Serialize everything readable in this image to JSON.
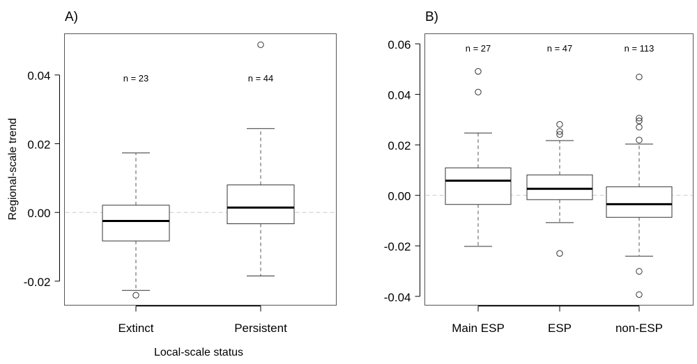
{
  "chart_data": [
    {
      "type": "box",
      "panel_label": "A)",
      "xlabel": "Local-scale status",
      "ylabel": "Regional-scale trend",
      "ylim": [
        -0.027,
        0.052
      ],
      "yticks": [
        -0.02,
        0.0,
        0.02,
        0.04
      ],
      "ytick_labels": [
        "-0.02",
        "0.00",
        "0.02",
        "0.04"
      ],
      "reference_line": 0.0,
      "categories": [
        "Extinct",
        "Persistent"
      ],
      "boxes": [
        {
          "category": "Extinct",
          "n_label": "n = 23",
          "whisker_low": -0.0227,
          "q1": -0.0083,
          "median": -0.0025,
          "q3": 0.0021,
          "whisker_high": 0.0173,
          "outliers": [
            -0.0241
          ]
        },
        {
          "category": "Persistent",
          "n_label": "n = 44",
          "whisker_low": -0.0185,
          "q1": -0.0033,
          "median": 0.0014,
          "q3": 0.008,
          "whisker_high": 0.0244,
          "outliers": [
            0.0488
          ]
        }
      ]
    },
    {
      "type": "box",
      "panel_label": "B)",
      "xlabel": "",
      "ylabel": "",
      "ylim": [
        -0.0435,
        0.064
      ],
      "yticks": [
        -0.04,
        -0.02,
        0.0,
        0.02,
        0.04,
        0.06
      ],
      "ytick_labels": [
        "-0.04",
        "-0.02",
        "0.00",
        "0.02",
        "0.04",
        "0.06"
      ],
      "reference_line": 0.0,
      "categories": [
        "Main ESP",
        "ESP",
        "non-ESP"
      ],
      "boxes": [
        {
          "category": "Main ESP",
          "n_label": "n = 27",
          "whisker_low": -0.0202,
          "q1": -0.0036,
          "median": 0.0058,
          "q3": 0.0109,
          "whisker_high": 0.0247,
          "outliers": [
            0.0491,
            0.0409
          ]
        },
        {
          "category": "ESP",
          "n_label": "n = 47",
          "whisker_low": -0.0108,
          "q1": -0.0017,
          "median": 0.0026,
          "q3": 0.0081,
          "whisker_high": 0.0217,
          "outliers": [
            0.0281,
            0.0253,
            0.0241,
            -0.023
          ]
        },
        {
          "category": "non-ESP",
          "n_label": "n = 113",
          "whisker_low": -0.0241,
          "q1": -0.0087,
          "median": -0.0035,
          "q3": 0.0034,
          "whisker_high": 0.0203,
          "outliers": [
            0.0469,
            0.0306,
            0.0295,
            0.027,
            0.0219,
            -0.0301,
            -0.0393
          ]
        }
      ]
    }
  ]
}
